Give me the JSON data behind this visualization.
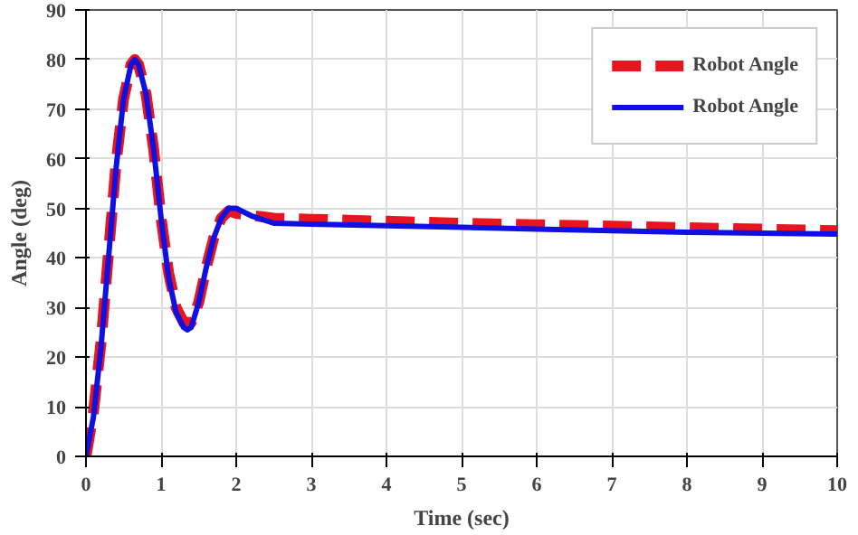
{
  "chart_data": {
    "type": "line",
    "xlabel": "Time (sec)",
    "ylabel": "Angle (deg)",
    "xlim": [
      0,
      10
    ],
    "xticks": [
      0,
      1,
      2,
      3,
      4,
      5,
      6,
      7,
      8,
      9,
      10
    ],
    "ylim": [
      0,
      90
    ],
    "yticks": [
      0,
      10,
      20,
      30,
      40,
      50,
      60,
      70,
      80,
      90
    ],
    "grid": true,
    "legend": "top right",
    "series": [
      {
        "name": "Robot Angle",
        "color": "#e8141e",
        "line_style": "dashed",
        "x": [
          0,
          0.1,
          0.2,
          0.3,
          0.4,
          0.5,
          0.6,
          0.65,
          0.7,
          0.8,
          0.9,
          1.0,
          1.1,
          1.2,
          1.3,
          1.4,
          1.5,
          1.6,
          1.7,
          1.8,
          1.9,
          2.0,
          2.5,
          3,
          4,
          5,
          6,
          7,
          8,
          9,
          10
        ],
        "values": [
          0,
          9,
          23,
          41,
          59,
          72,
          79,
          80,
          79,
          73,
          62,
          48,
          37,
          30,
          27,
          27,
          31,
          38,
          44,
          48,
          49.5,
          49,
          48,
          47.8,
          47.4,
          47,
          46.7,
          46.4,
          46.1,
          45.8,
          45.5
        ]
      },
      {
        "name": "Robot Angle",
        "color": "#1010e0",
        "line_style": "solid",
        "x": [
          0,
          0.1,
          0.2,
          0.3,
          0.4,
          0.5,
          0.6,
          0.65,
          0.7,
          0.8,
          0.9,
          1.0,
          1.1,
          1.2,
          1.3,
          1.35,
          1.4,
          1.5,
          1.6,
          1.7,
          1.8,
          1.9,
          2.0,
          2.2,
          2.5,
          3,
          4,
          5,
          6,
          7,
          8,
          9,
          10
        ],
        "values": [
          0,
          8,
          22,
          40,
          58,
          72,
          79,
          80,
          79,
          73,
          62,
          48,
          36,
          29,
          26,
          25.5,
          26,
          31,
          38,
          44,
          48,
          50,
          50,
          48.5,
          47,
          46.8,
          46.5,
          46.2,
          45.8,
          45.5,
          45.2,
          45,
          44.8
        ]
      }
    ]
  }
}
